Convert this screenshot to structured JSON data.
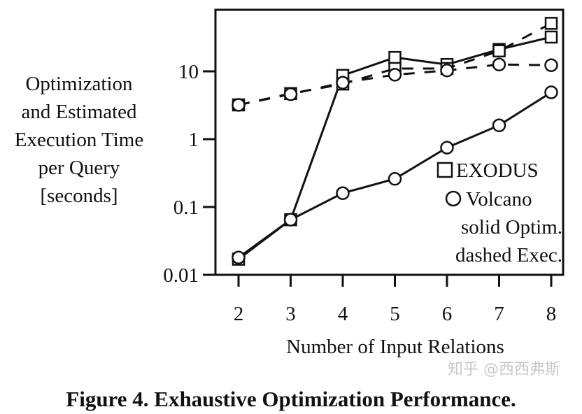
{
  "chart_data": {
    "type": "line",
    "title": "",
    "caption": "Figure 4. Exhaustive Optimization Performance.",
    "xlabel": "Number of Input Relations",
    "ylabel_lines": [
      "Optimization",
      "and Estimated",
      "Execution Time",
      "per Query",
      "[seconds]"
    ],
    "x": [
      2,
      3,
      4,
      5,
      6,
      7,
      8
    ],
    "x_ticks": [
      "2",
      "3",
      "4",
      "5",
      "6",
      "7",
      "8"
    ],
    "y_scale": "log",
    "y_ticks": [
      "0.01",
      "0.1",
      "1",
      "10"
    ],
    "y_tick_values": [
      0.01,
      0.1,
      1,
      10
    ],
    "ylim": [
      0.01,
      60
    ],
    "legend": [
      "EXODUS",
      "Volcano",
      "solid Optim.",
      "dashed Exec."
    ],
    "legend_position": "bottom-right",
    "series": [
      {
        "name": "EXODUS Optim.",
        "marker": "square",
        "style": "solid",
        "values": [
          0.017,
          0.065,
          8.7,
          16,
          12.6,
          21,
          32
        ]
      },
      {
        "name": "EXODUS Exec.",
        "marker": "square",
        "style": "dashed",
        "values": [
          3.2,
          4.7,
          6.5,
          11,
          11,
          20,
          51
        ]
      },
      {
        "name": "Volcano Optim.",
        "marker": "circle",
        "style": "solid",
        "values": [
          0.018,
          0.065,
          0.16,
          0.26,
          0.75,
          1.6,
          4.9
        ]
      },
      {
        "name": "Volcano Exec.",
        "marker": "circle",
        "style": "dashed",
        "values": [
          3.2,
          4.6,
          6.8,
          8.9,
          10.3,
          12.6,
          12.3
        ]
      }
    ]
  },
  "watermark": "知乎 @西西弗斯"
}
